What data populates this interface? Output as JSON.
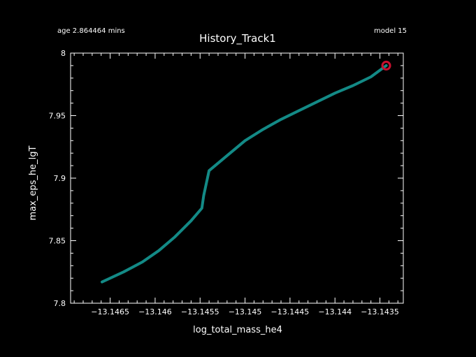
{
  "header": {
    "age": "age 2.864464 mins",
    "model": "model 15"
  },
  "chart_data": {
    "type": "line",
    "title": "History_Track1",
    "xlabel": "log_total_mass_he4",
    "ylabel": "max_eps_he_lgT",
    "xlim": [
      -13.14694,
      -13.14324
    ],
    "ylim": [
      7.8,
      8.0
    ],
    "x_ticks": [
      -13.1465,
      -13.146,
      -13.1455,
      -13.145,
      -13.1445,
      -13.144,
      -13.1435
    ],
    "x_tick_labels": [
      "−13.1465",
      "−13.146",
      "−13.1455",
      "−13.145",
      "−13.1445",
      "−13.144",
      "−13.1435"
    ],
    "y_ticks": [
      7.8,
      7.85,
      7.9,
      7.95,
      8.0
    ],
    "y_tick_labels": [
      "7.8",
      "7.85",
      "7.9",
      "7.95",
      "8"
    ],
    "grid": false,
    "colors": {
      "background": "#000000",
      "axes": "#ffffff",
      "line": "#138a86",
      "marker": "#c8102e"
    },
    "series": [
      {
        "x": [
          -13.14659,
          -13.14635,
          -13.14614,
          -13.14596,
          -13.14578,
          -13.1456,
          -13.14548,
          -13.14546,
          -13.1454,
          -13.1452,
          -13.145,
          -13.1448,
          -13.1446,
          -13.1444,
          -13.1442,
          -13.144,
          -13.1438,
          -13.1436,
          -13.14343
        ],
        "y": [
          7.817,
          7.825,
          7.833,
          7.842,
          7.853,
          7.866,
          7.876,
          7.886,
          7.906,
          7.918,
          7.93,
          7.939,
          7.947,
          7.954,
          7.961,
          7.968,
          7.974,
          7.981,
          7.99
        ]
      }
    ],
    "marker_point": {
      "x": -13.14343,
      "y": 7.99
    }
  }
}
